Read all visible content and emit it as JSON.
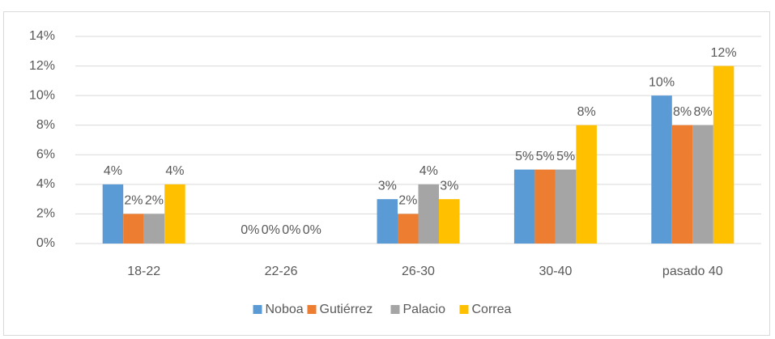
{
  "chart_data": {
    "type": "bar",
    "categories": [
      "18-22",
      "22-26",
      "26-30",
      "30-40",
      "pasado 40"
    ],
    "series": [
      {
        "name": "Noboa",
        "color": "#5b9bd5",
        "values": [
          4,
          0,
          3,
          5,
          10
        ],
        "value_labels": [
          "4%",
          "0%",
          "3%",
          "5%",
          "10%"
        ]
      },
      {
        "name": "Gutiérrez",
        "color": "#ed7d31",
        "values": [
          2,
          0,
          2,
          5,
          8
        ],
        "value_labels": [
          "2%",
          "0%",
          "2%",
          "5%",
          "8%"
        ]
      },
      {
        "name": "Palacio",
        "color": "#a5a5a5",
        "values": [
          2,
          0,
          4,
          5,
          8
        ],
        "value_labels": [
          "2%",
          "0%",
          "4%",
          "5%",
          "8%"
        ]
      },
      {
        "name": "Correa",
        "color": "#ffc000",
        "values": [
          4,
          0,
          3,
          8,
          12
        ],
        "value_labels": [
          "4%",
          "0%",
          "3%",
          "8%",
          "12%"
        ]
      }
    ],
    "ylim": [
      0,
      14
    ],
    "yticks": [
      {
        "value": 0,
        "label": "0%"
      },
      {
        "value": 2,
        "label": "2%"
      },
      {
        "value": 4,
        "label": "4%"
      },
      {
        "value": 6,
        "label": "6%"
      },
      {
        "value": 8,
        "label": "8%"
      },
      {
        "value": 10,
        "label": "10%"
      },
      {
        "value": 12,
        "label": "12%"
      },
      {
        "value": 14,
        "label": "14%"
      }
    ],
    "grid": true,
    "legend": "bottom"
  }
}
